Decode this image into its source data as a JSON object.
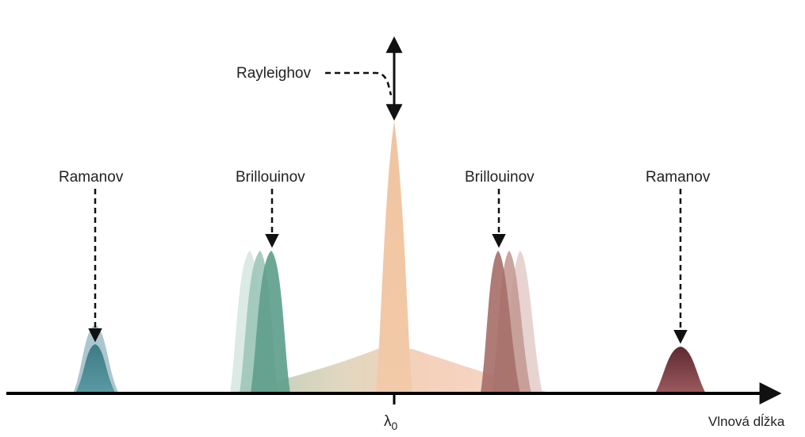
{
  "labels": {
    "rayleigh": "Rayleighov",
    "brillouin_left": "Brillouinov",
    "brillouin_right": "Brillouinov",
    "raman_left": "Ramanov",
    "raman_right": "Ramanov",
    "x_axis": "Vlnová dĺžka",
    "center_symbol": "λ",
    "center_subscript": "0"
  },
  "colors": {
    "rayleigh_peak": "#f2c8a4",
    "raman_left": "#3f7f8c",
    "raman_right": "#6e2f35",
    "brillouin_left": "#5f9f8c",
    "brillouin_right": "#a7706a",
    "axis": "#000000",
    "base_left": "#9fc0a8",
    "base_right": "#f3c6ae"
  }
}
